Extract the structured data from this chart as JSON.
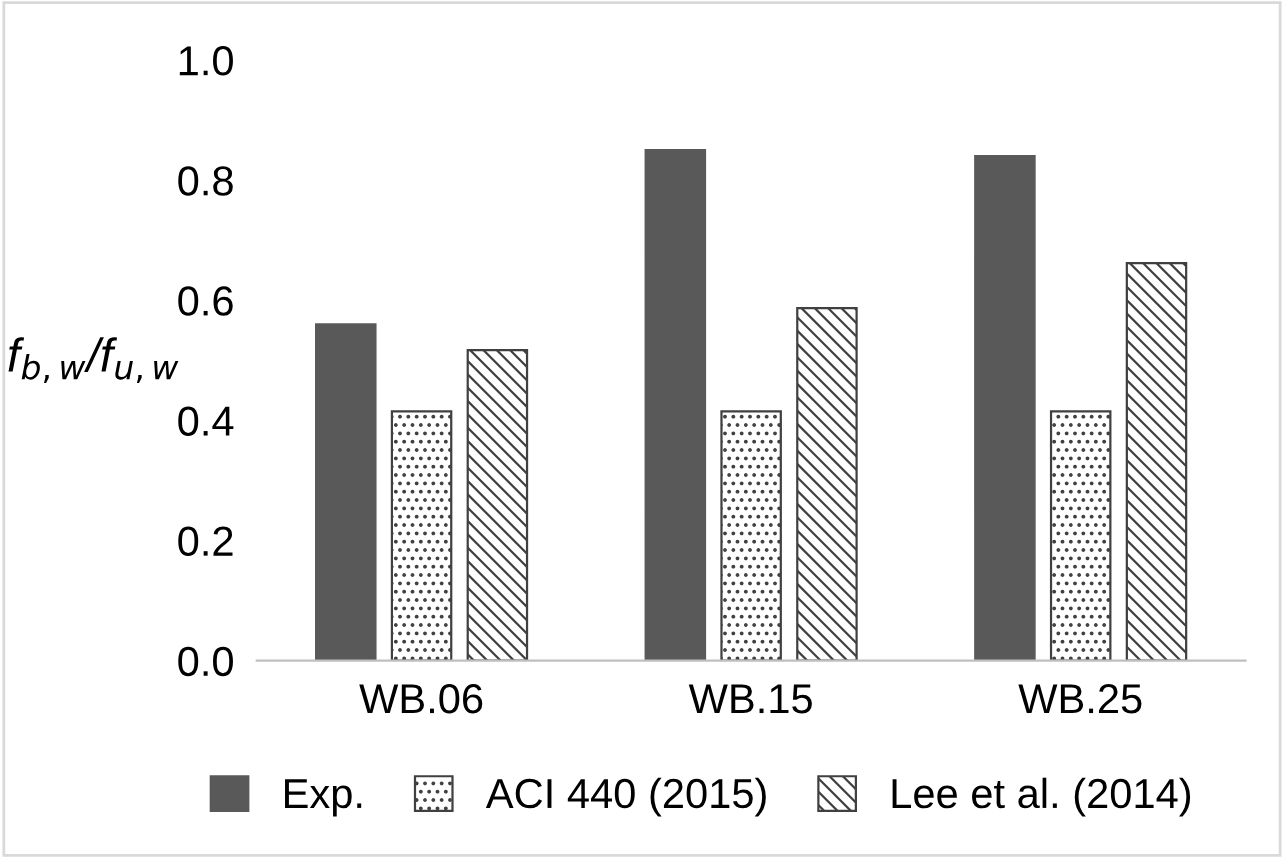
{
  "chart_data": {
    "type": "bar",
    "ylabel": "f$_{b,w}$/f$_{u,w}$",
    "categories": [
      "WB.06",
      "WB.15",
      "WB.25"
    ],
    "series": [
      {
        "name": "Exp.",
        "color": "#595959",
        "values": [
          0.56,
          0.85,
          0.84
        ]
      },
      {
        "name": "ACI 440 (2015)",
        "color": "#404040",
        "values": [
          0.415,
          0.415,
          0.415
        ]
      },
      {
        "name": "Lee et al. (2014)",
        "color": "#404040",
        "values": [
          0.517,
          0.587,
          0.662
        ]
      }
    ],
    "ylim": [
      0,
      1.0
    ],
    "yticks": [
      {
        "value": 0,
        "label": "0.0"
      },
      {
        "value": 0.2,
        "label": "0.2"
      },
      {
        "value": 0.4,
        "label": "0.4"
      },
      {
        "value": 0.6,
        "label": "0.6"
      },
      {
        "value": 0.8,
        "label": "0.8"
      },
      {
        "value": 1.0,
        "label": "1.0"
      }
    ],
    "grid": false,
    "legend": "bottom"
  }
}
